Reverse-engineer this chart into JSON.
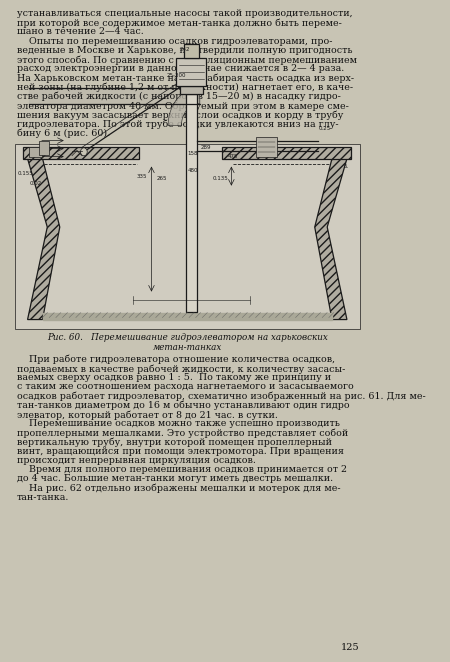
{
  "bg_color": "#c8c4b4",
  "text_color": "#111111",
  "page_number": "125",
  "top_text": [
    "устанавливаться специальные насосы такой производительности,",
    "при которой все содержимое метан-танка должно быть переме-",
    "шано в течение 2—4 час.",
    "    Опыты по перемешиванию осадков гидроэлеваторами, про-",
    "веденные в Москве и Харькове, подтвердили полную пригодность",
    "этого способа. По сравнению с циркуляционным перемешиванием",
    "расход электроэнергии в данном случае снижается в 2— 4 раза.",
    "На Харьковском метан-танке насос, забирая часть осадка из верх-",
    "ней зоны (на глубине 1,2 м от поверхности) нагнетает его, в каче-",
    "стве рабочей жидкости (с напором в 15—20 м) в насадку гидро-",
    "элеватора диаметром 40 мм. Образуемый при этом в камере сме-",
    "шения вакуум засасывает верхние слои осадков и корду в трубу",
    "гидроэлеватора. По этой трубе осадки увлекаются вниз на глу-",
    "бину 6 м (рис. 60)."
  ],
  "caption_line1": "Рис. 60.   Перемешивание гидроэлеватором на харьковских",
  "caption_line2": "метан-танках",
  "bottom_text": [
    "    При работе гидроэлеватора отношение количества осадков,",
    "подаваемых в качестве рабочей жидкости, к количеству засасы-",
    "ваемых сверху осадков равно 1 : 5.  По такому же принципу и",
    "с таким же соотношением расхода нагнетаемого и засасываемого",
    "осадков работает гидроэлеватор, схематично изображенный на рис. 61. Для ме-",
    "тан-танков диаметром до 16 м обычно устанавливают один гидро",
    "элеватор, который работает от 8 до 21 час. в сутки.",
    "    Перемешивание осадков можно также успешно производить",
    "пропеллерными мешалками. Это устройство представляет собой",
    "вертикальную трубу, внутри которой помещен пропеллерный",
    "винт, вращающийся при помощи электромотора. При вращения",
    "происходит непрерывная циркуляция осадков.",
    "    Время для полного перемешивания осадков принимается от 2",
    "до 4 час. Большие метан-танки могут иметь двестрь мешалки.",
    "    На рис. 62 отдельно изображены мешалки и мотерок для ме-",
    "тан-танка."
  ],
  "diag_bg": "#c8c4b4",
  "diag_line_color": "#1a1a1a"
}
